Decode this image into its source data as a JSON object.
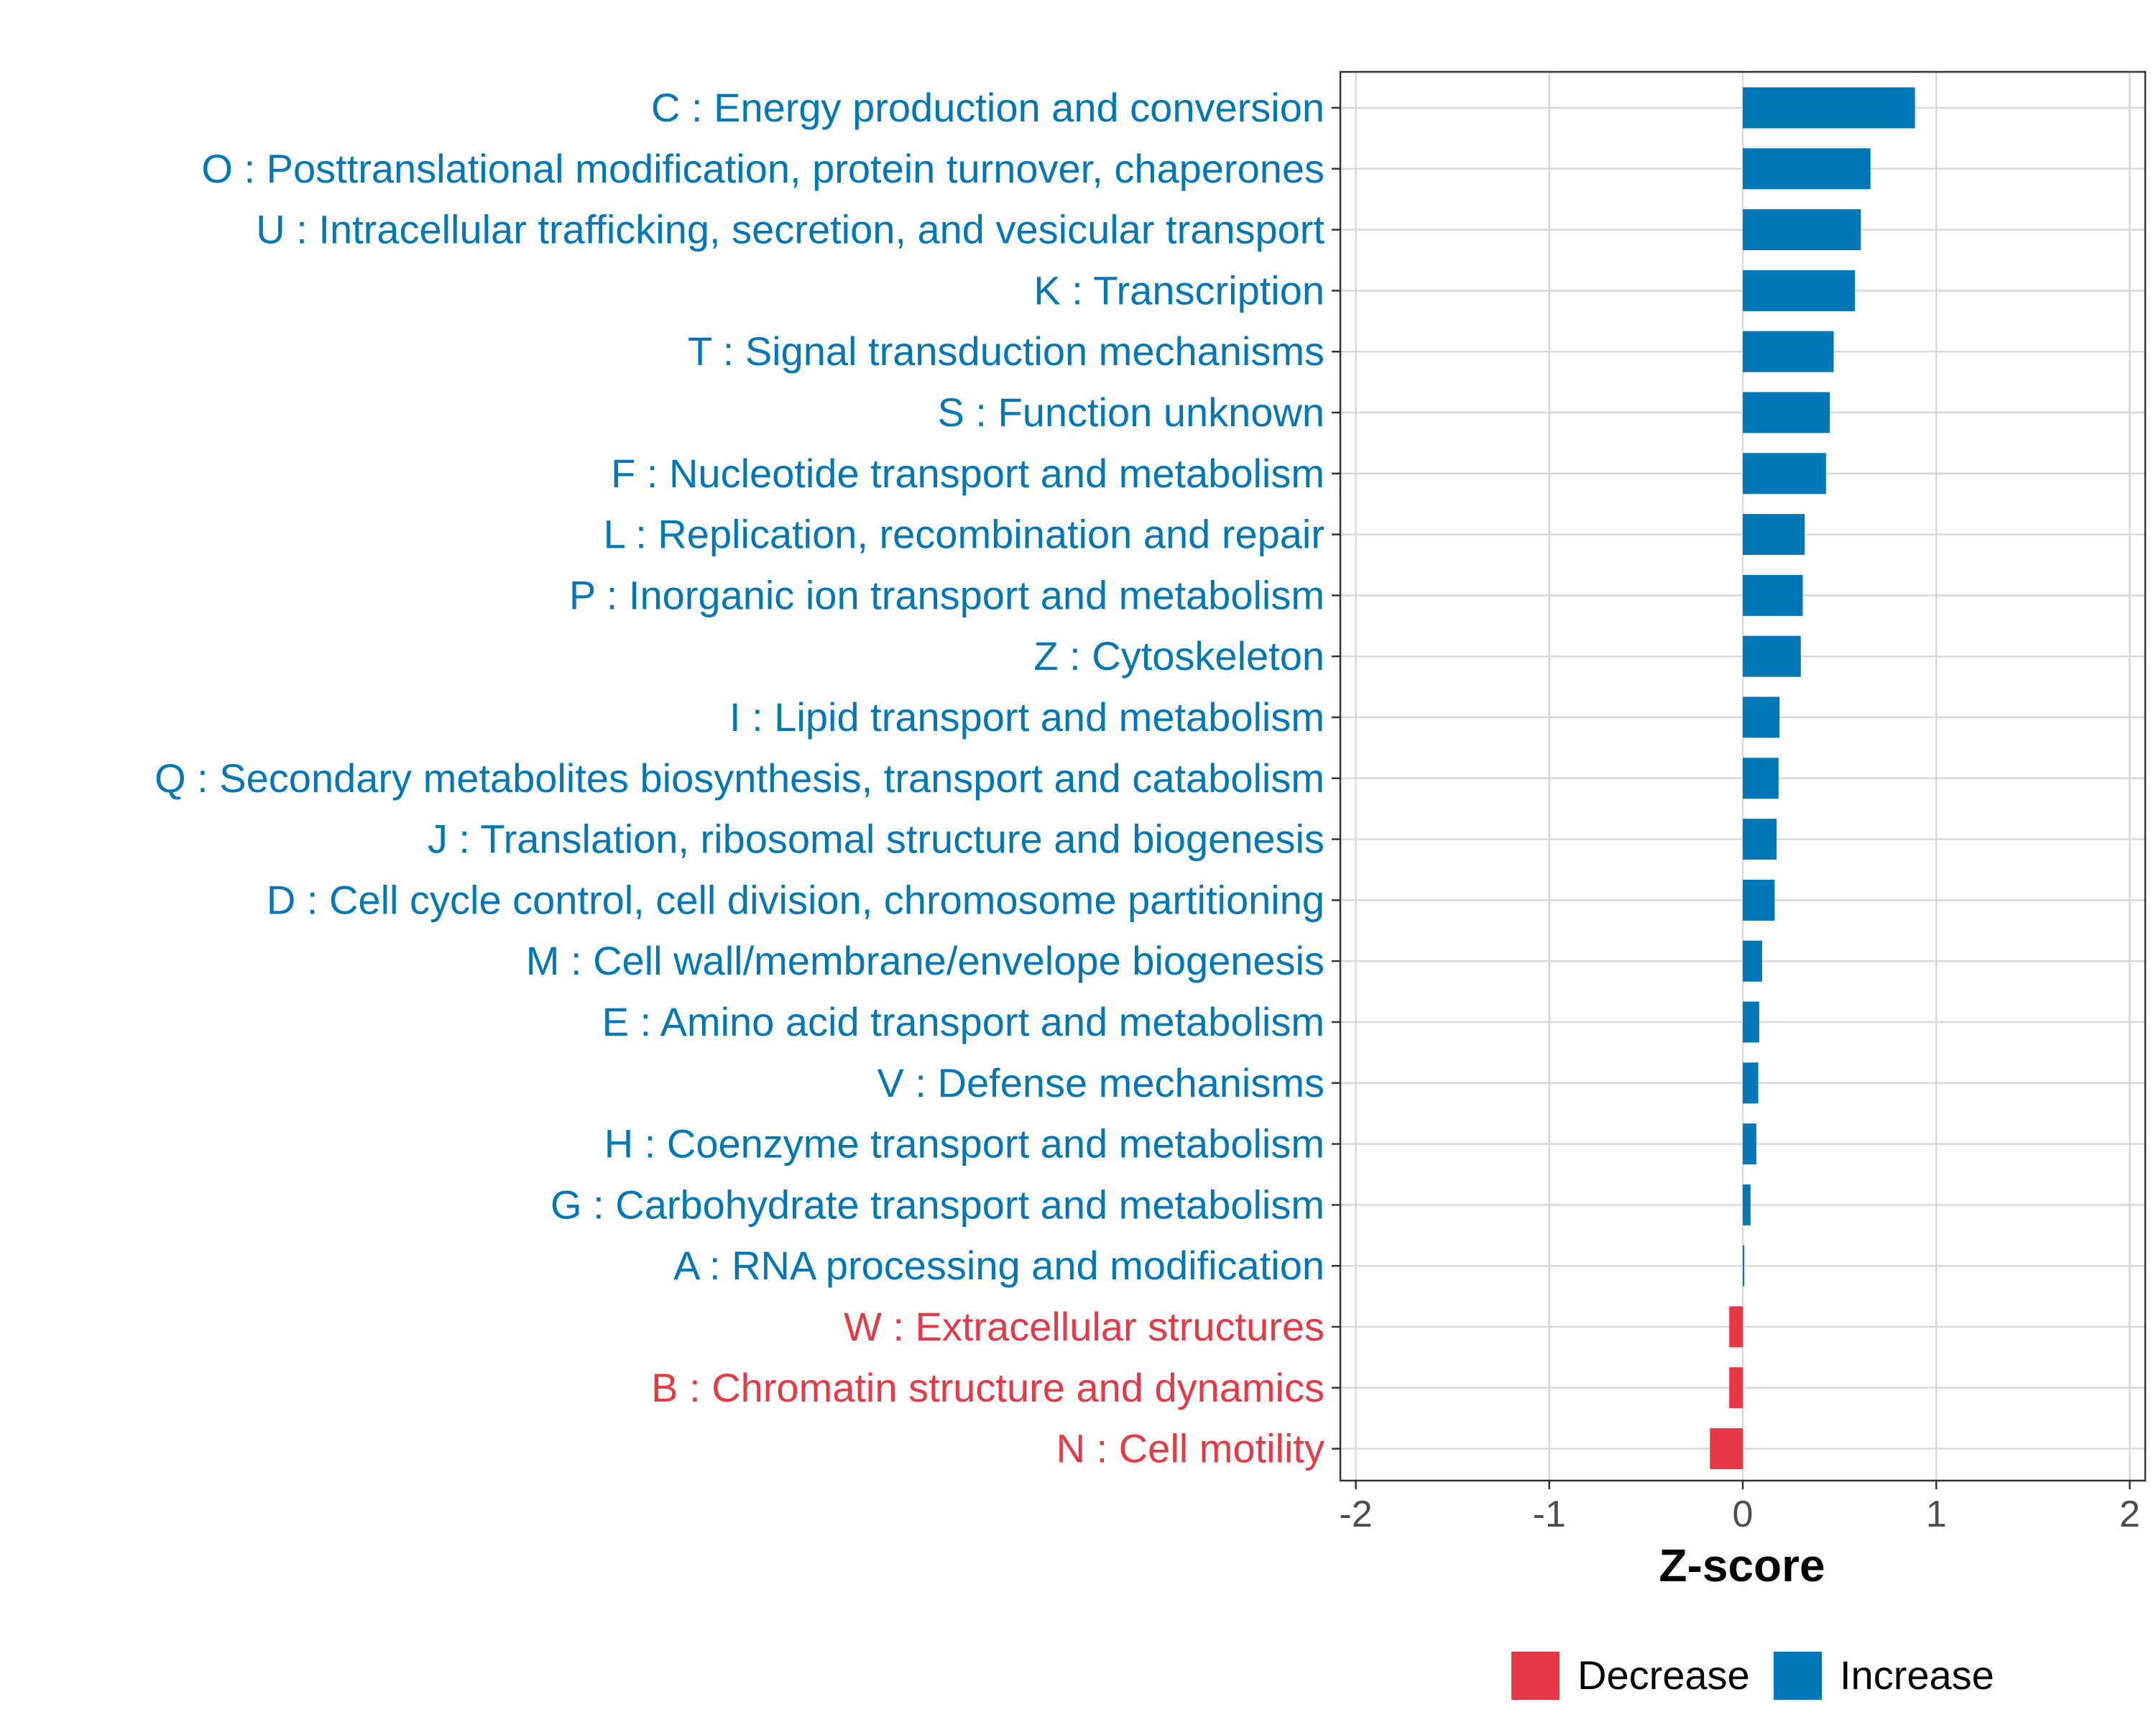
{
  "chart_data": {
    "type": "bar",
    "orientation": "horizontal",
    "title": "",
    "xlabel": "Z-score",
    "ylabel": "",
    "xlim": [
      -2.08,
      2.08
    ],
    "x_ticks": [
      -2,
      -1,
      0,
      1,
      2
    ],
    "x_tick_labels": [
      "-2",
      "-1",
      "0",
      "1",
      "2"
    ],
    "grid": true,
    "legend_position": "bottom",
    "categories": [
      "C : Energy production and conversion",
      "O : Posttranslational modification, protein turnover, chaperones",
      "U : Intracellular trafficking, secretion, and vesicular transport",
      "K : Transcription",
      "T : Signal transduction mechanisms",
      "S : Function unknown",
      "F : Nucleotide transport and metabolism",
      "L : Replication, recombination and repair",
      "P : Inorganic ion transport and metabolism",
      "Z : Cytoskeleton",
      "I : Lipid transport and metabolism",
      "Q : Secondary metabolites biosynthesis, transport and catabolism",
      "J : Translation, ribosomal structure and biogenesis",
      "D : Cell cycle control, cell division, chromosome partitioning",
      "M : Cell wall/membrane/envelope biogenesis",
      "E : Amino acid transport and metabolism",
      "V : Defense mechanisms",
      "H : Coenzyme transport and metabolism",
      "G : Carbohydrate transport and metabolism",
      "A : RNA processing and modification",
      "W : Extracellular structures",
      "B : Chromatin structure and dynamics",
      "N : Cell motility"
    ],
    "values": [
      0.89,
      0.66,
      0.61,
      0.58,
      0.47,
      0.45,
      0.43,
      0.32,
      0.31,
      0.3,
      0.19,
      0.185,
      0.175,
      0.165,
      0.1,
      0.085,
      0.08,
      0.07,
      0.04,
      0.005,
      -0.07,
      -0.07,
      -0.17
    ],
    "legend": [
      {
        "label": "Decrease",
        "color": "#e63946"
      },
      {
        "label": "Increase",
        "color": "#0077b6"
      }
    ],
    "colors": {
      "increase": "#0077b6",
      "decrease": "#e63946",
      "grid": "#d9d9d9",
      "axis_text": "#4d4d4d",
      "frame": "#333333"
    }
  }
}
